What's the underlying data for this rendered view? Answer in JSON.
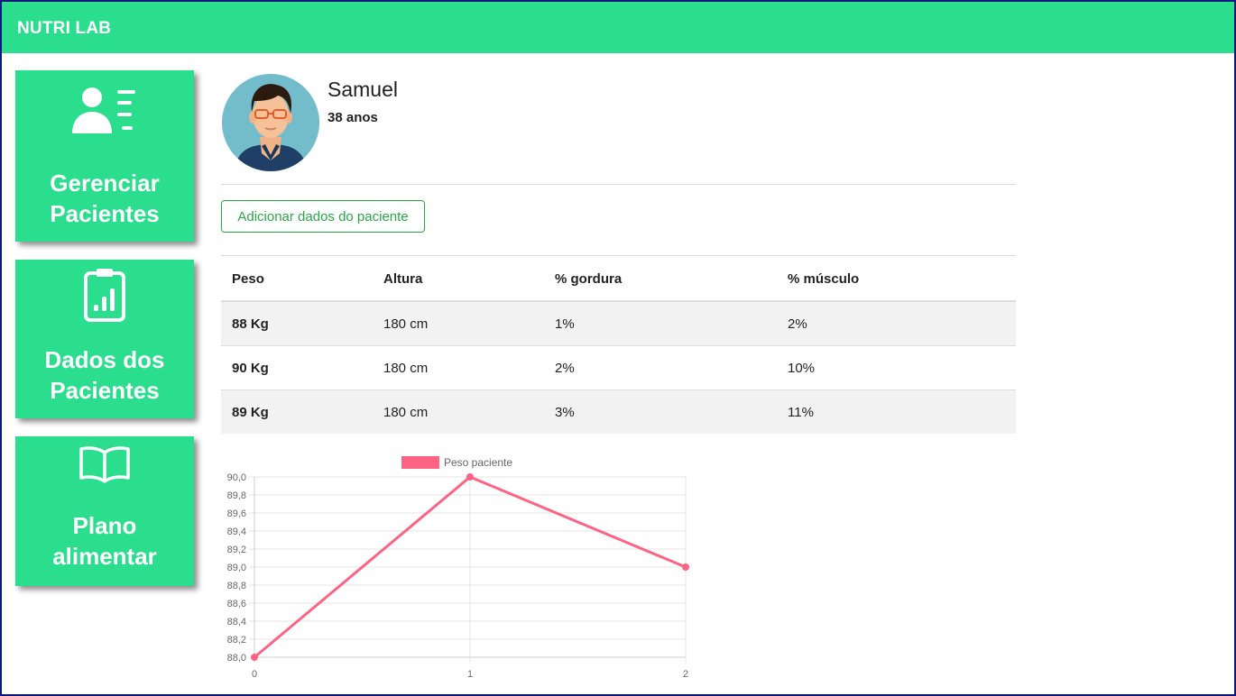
{
  "app": {
    "title": "NUTRI LAB"
  },
  "sidebar": {
    "items": [
      {
        "line1": "Gerenciar",
        "line2": "Pacientes",
        "icon": "manage-patients-icon"
      },
      {
        "line1": "Dados dos",
        "line2": "Pacientes",
        "icon": "clipboard-chart-icon"
      },
      {
        "line1": "Plano",
        "line2": "alimentar",
        "icon": "open-book-icon"
      }
    ]
  },
  "patient": {
    "name": "Samuel",
    "age": "38 anos"
  },
  "actions": {
    "add_label": "Adicionar dados do paciente"
  },
  "table": {
    "headers": [
      "Peso",
      "Altura",
      "% gordura",
      "% músculo"
    ],
    "rows": [
      [
        "88 Kg",
        "180 cm",
        "1%",
        "2%"
      ],
      [
        "90 Kg",
        "180 cm",
        "2%",
        "10%"
      ],
      [
        "89 Kg",
        "180 cm",
        "3%",
        "11%"
      ]
    ]
  },
  "colors": {
    "accent": "#2ade8e",
    "button": "#28a745",
    "series": "#ff6384",
    "frame": "#0b1a7a"
  },
  "chart_data": {
    "type": "line",
    "x": [
      0,
      1,
      2
    ],
    "series": [
      {
        "name": "Peso paciente",
        "values": [
          88.0,
          90.0,
          89.0
        ]
      }
    ],
    "ylim": [
      88.0,
      90.0
    ],
    "yticks": [
      "90,0",
      "89,8",
      "89,6",
      "89,4",
      "89,2",
      "89,0",
      "88,8",
      "88,6",
      "88,4",
      "88,2",
      "88,0"
    ],
    "xticks": [
      "0",
      "1",
      "2"
    ],
    "grid": true,
    "legend": "top"
  }
}
